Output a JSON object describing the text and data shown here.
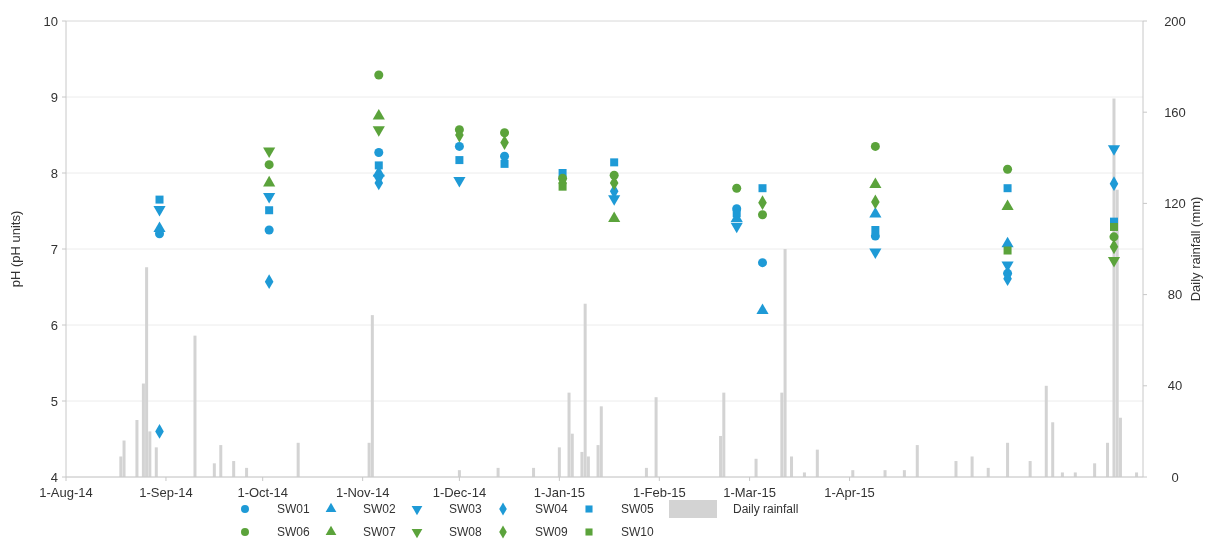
{
  "chart_data": {
    "type": "scatter",
    "x": [
      "2014-08-30",
      "2014-10-03",
      "2014-11-06",
      "2014-12-01",
      "2014-12-15",
      "2015-01-02",
      "2015-01-18",
      "2015-02-25",
      "2015-03-05",
      "2015-04-09",
      "2015-05-20",
      "2015-06-22"
    ],
    "series": [
      {
        "name": "SW01",
        "color": "#1e9ad6",
        "marker": "circle",
        "values": [
          7.2,
          7.25,
          8.27,
          8.35,
          8.22,
          null,
          null,
          7.53,
          6.82,
          7.17,
          6.68,
          null
        ]
      },
      {
        "name": "SW02",
        "color": "#1e9ad6",
        "marker": "triangle",
        "values": [
          7.27,
          null,
          8.0,
          null,
          null,
          null,
          null,
          7.4,
          6.19,
          7.46,
          7.07,
          null
        ]
      },
      {
        "name": "SW03",
        "color": "#1e9ad6",
        "marker": "triangle-down",
        "values": [
          7.52,
          7.69,
          7.93,
          7.9,
          null,
          null,
          7.66,
          7.3,
          null,
          6.96,
          6.79,
          8.32
        ]
      },
      {
        "name": "SW04",
        "color": "#1e9ad6",
        "marker": "diamond",
        "values": [
          4.6,
          6.57,
          7.87,
          null,
          null,
          null,
          7.76,
          null,
          null,
          null,
          6.61,
          7.86
        ]
      },
      {
        "name": "SW05",
        "color": "#1e9ad6",
        "marker": "square",
        "values": [
          7.65,
          7.51,
          8.1,
          8.17,
          8.12,
          8.0,
          8.14,
          7.47,
          7.8,
          7.25,
          7.8,
          7.36
        ]
      },
      {
        "name": "SW06",
        "color": "#5ba33b",
        "marker": "circle",
        "values": [
          null,
          8.11,
          9.29,
          8.57,
          8.53,
          7.93,
          7.97,
          7.8,
          7.45,
          8.35,
          8.05,
          7.16
        ]
      },
      {
        "name": "SW07",
        "color": "#5ba33b",
        "marker": "triangle",
        "values": [
          null,
          7.87,
          8.75,
          null,
          null,
          null,
          7.4,
          null,
          null,
          7.85,
          7.56,
          null
        ]
      },
      {
        "name": "SW08",
        "color": "#5ba33b",
        "marker": "triangle-down",
        "values": [
          null,
          8.29,
          8.57,
          null,
          null,
          null,
          null,
          null,
          null,
          null,
          null,
          6.85
        ]
      },
      {
        "name": "SW09",
        "color": "#5ba33b",
        "marker": "diamond",
        "values": [
          null,
          null,
          null,
          8.5,
          8.4,
          7.87,
          7.87,
          null,
          7.61,
          7.62,
          null,
          7.03
        ]
      },
      {
        "name": "SW10",
        "color": "#5ba33b",
        "marker": "square",
        "values": [
          null,
          null,
          null,
          null,
          null,
          7.82,
          null,
          null,
          null,
          null,
          6.98,
          7.29
        ]
      },
      {
        "name": "Daily rainfall",
        "type": "bar",
        "axis": "y2",
        "color": "#d3d3d3",
        "x": [
          "2014-08-18",
          "2014-08-19",
          "2014-08-23",
          "2014-08-25",
          "2014-08-26",
          "2014-08-27",
          "2014-08-29",
          "2014-09-10",
          "2014-09-16",
          "2014-09-18",
          "2014-09-22",
          "2014-09-26",
          "2014-10-12",
          "2014-11-03",
          "2014-11-04",
          "2014-12-01",
          "2014-12-13",
          "2014-12-24",
          "2015-01-01",
          "2015-01-04",
          "2015-01-05",
          "2015-01-08",
          "2015-01-09",
          "2015-01-10",
          "2015-01-13",
          "2015-01-14",
          "2015-01-28",
          "2015-01-31",
          "2015-02-20",
          "2015-02-21",
          "2015-03-03",
          "2015-03-11",
          "2015-03-12",
          "2015-03-14",
          "2015-03-18",
          "2015-03-22",
          "2015-04-02",
          "2015-04-12",
          "2015-04-18",
          "2015-04-22",
          "2015-05-04",
          "2015-05-09",
          "2015-05-14",
          "2015-05-20",
          "2015-05-27",
          "2015-06-01",
          "2015-06-03",
          "2015-06-06",
          "2015-06-10",
          "2015-06-16",
          "2015-06-20",
          "2015-06-22",
          "2015-06-23",
          "2015-06-24",
          "2015-06-29"
        ],
        "values": [
          9,
          16,
          25,
          41,
          92,
          20,
          13,
          62,
          6,
          14,
          7,
          4,
          15,
          15,
          71,
          3,
          4,
          4,
          13,
          37,
          19,
          11,
          76,
          9,
          14,
          31,
          4,
          35,
          18,
          37,
          8,
          37,
          100,
          9,
          2,
          12,
          3,
          3,
          3,
          14,
          7,
          9,
          4,
          15,
          7,
          40,
          24,
          2,
          2,
          6,
          15,
          166,
          126,
          26,
          2
        ]
      }
    ],
    "ylabel": "pH (pH units)",
    "y2label": "Daily rainfall (mm)",
    "xlim": [
      "2014-08-01",
      "2015-07-01"
    ],
    "xticks": [
      {
        "value": "2014-08-01",
        "label": "1-Aug-14"
      },
      {
        "value": "2014-09-01",
        "label": "1-Sep-14"
      },
      {
        "value": "2014-10-01",
        "label": "1-Oct-14"
      },
      {
        "value": "2014-11-01",
        "label": "1-Nov-14"
      },
      {
        "value": "2014-12-01",
        "label": "1-Dec-14"
      },
      {
        "value": "2015-01-01",
        "label": "1-Jan-15"
      },
      {
        "value": "2015-02-01",
        "label": "1-Feb-15"
      },
      {
        "value": "2015-03-01",
        "label": "1-Mar-15"
      },
      {
        "value": "2015-04-01",
        "label": "1-Apr-15"
      }
    ],
    "ylim": [
      4,
      10
    ],
    "yticks": [
      4,
      5,
      6,
      7,
      8,
      9,
      10
    ],
    "y2lim": [
      0,
      200
    ],
    "y2ticks": [
      0,
      40,
      80,
      120,
      160,
      200
    ],
    "grid": "y",
    "legend": "bottom"
  }
}
